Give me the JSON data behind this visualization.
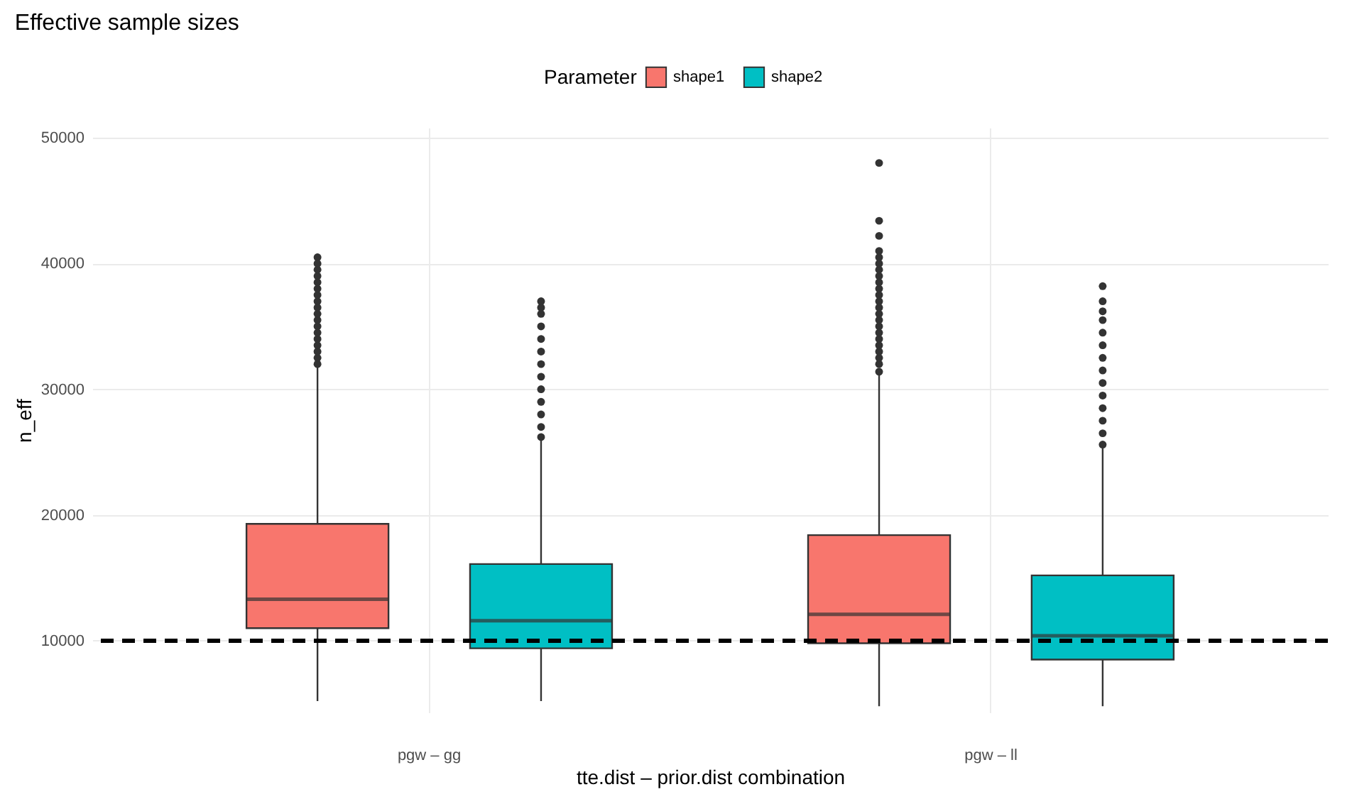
{
  "chart_data": {
    "type": "box",
    "title": "Effective sample sizes",
    "xlabel": "tte.dist – prior.dist combination",
    "ylabel": "n_eff",
    "legend_title": "Parameter",
    "legend": "top",
    "grid": true,
    "categories": [
      "pgw – gg",
      "pgw – ll"
    ],
    "ylim": [
      4300,
      50800
    ],
    "yticks": [
      {
        "value": 10000,
        "label": "10000"
      },
      {
        "value": 20000,
        "label": "20000"
      },
      {
        "value": 30000,
        "label": "30000"
      },
      {
        "value": 40000,
        "label": "40000"
      },
      {
        "value": 50000,
        "label": "50000"
      }
    ],
    "series": [
      {
        "name": "shape1",
        "color": "#f8766d",
        "boxes": [
          {
            "low": 5200,
            "q1": 11000,
            "median": 13300,
            "q3": 19300,
            "high": 31800,
            "outliers": [
              32000,
              32500,
              33000,
              33500,
              34000,
              34500,
              35000,
              35500,
              36000,
              36500,
              37000,
              37500,
              38000,
              38500,
              39000,
              39500,
              40000,
              40500
            ]
          },
          {
            "low": 4800,
            "q1": 9800,
            "median": 12100,
            "q3": 18400,
            "high": 31200,
            "outliers": [
              31400,
              32000,
              32500,
              33000,
              33500,
              34000,
              34500,
              35000,
              35500,
              36000,
              36500,
              37000,
              37500,
              38000,
              38500,
              39000,
              39500,
              40000,
              40500,
              41000,
              42200,
              43400,
              48000
            ]
          }
        ]
      },
      {
        "name": "shape2",
        "color": "#00bfc4",
        "boxes": [
          {
            "low": 5200,
            "q1": 9400,
            "median": 11600,
            "q3": 16100,
            "high": 26000,
            "outliers": [
              26200,
              27000,
              28000,
              29000,
              30000,
              31000,
              32000,
              33000,
              34000,
              35000,
              36000,
              36500,
              37000
            ]
          },
          {
            "low": 4800,
            "q1": 8500,
            "median": 10400,
            "q3": 15200,
            "high": 25300,
            "outliers": [
              25600,
              26500,
              27500,
              28500,
              29500,
              30500,
              31500,
              32500,
              33500,
              34500,
              35500,
              36200,
              37000,
              38200
            ]
          }
        ]
      }
    ],
    "ref_lines": [
      {
        "axis": "y",
        "value": 10000,
        "color": "#000000",
        "line_style": "dashed"
      }
    ]
  }
}
